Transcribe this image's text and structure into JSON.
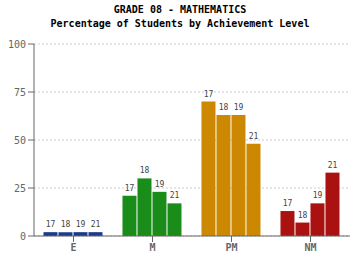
{
  "chart_data": {
    "type": "bar",
    "title": "GRADE 08 - MATHEMATICS",
    "subtitle": "Percentage of Students by Achievement Level",
    "categories": [
      "E",
      "M",
      "PM",
      "NM"
    ],
    "series": [
      {
        "name": "17",
        "values": [
          2,
          21,
          70,
          13
        ]
      },
      {
        "name": "18",
        "values": [
          2,
          30,
          63,
          7
        ]
      },
      {
        "name": "19",
        "values": [
          2,
          23,
          63,
          17
        ]
      },
      {
        "name": "21",
        "values": [
          2,
          17,
          48,
          33
        ]
      }
    ],
    "colors": [
      "#1a3a8c",
      "#1a8c1a",
      "#cc8800",
      "#aa1111"
    ],
    "ylim": [
      0,
      100
    ],
    "yticks": [
      0,
      25,
      50,
      75,
      100
    ],
    "grid": true
  }
}
